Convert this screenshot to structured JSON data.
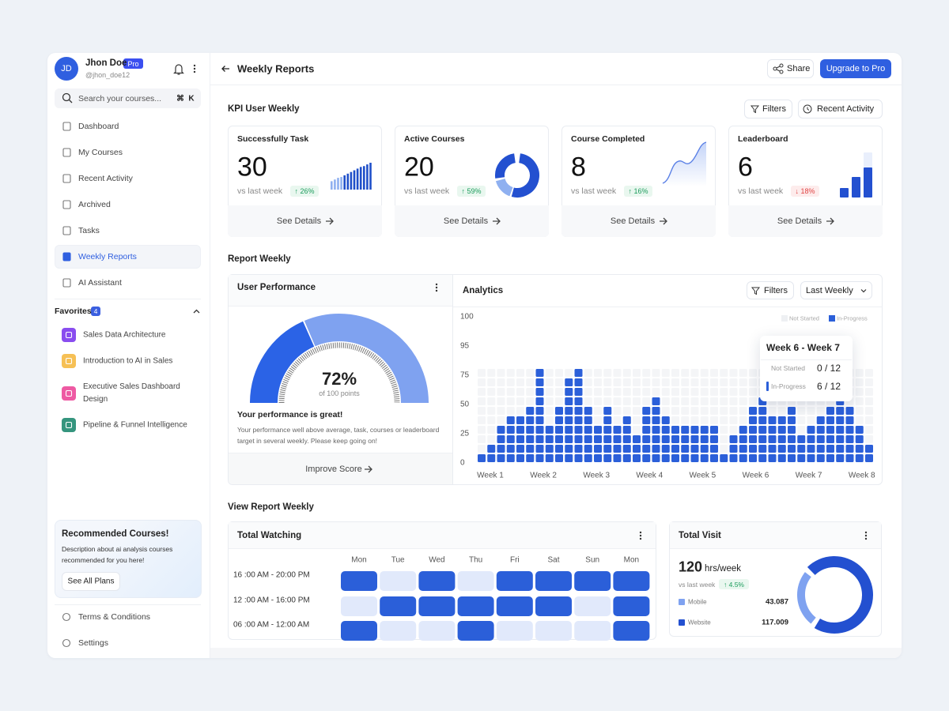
{
  "sidebar": {
    "user": {
      "initials": "JD",
      "name": "Jhon Doe",
      "badge": "Pro",
      "handle": "@jhon_doe12"
    },
    "search": {
      "placeholder": "Search your courses...",
      "shortcut": [
        "⌘",
        "K"
      ]
    },
    "nav": [
      "Dashboard",
      "My Courses",
      "Recent Activity",
      "Archived",
      "Tasks",
      "Weekly Reports",
      "AI Assistant"
    ],
    "active": 5,
    "favorites": {
      "title": "Favorites",
      "count": 4,
      "items": [
        {
          "label": "Sales Data Architecture",
          "color": "#7c3aed"
        },
        {
          "label": "Introduction to AI in Sales",
          "color": "#f5b942"
        },
        {
          "label": "Executive Sales Dashboard Design",
          "color": "#ec4899"
        },
        {
          "label": "Pipeline & Funnel Intelligence",
          "color": "#1f8a70"
        }
      ]
    },
    "recommended": {
      "title": "Recommended Courses!",
      "description": "Description about ai analysis courses recommended for you here!",
      "button": "See All Plans"
    },
    "footer": [
      "Terms & Conditions",
      "Settings"
    ]
  },
  "header": {
    "title": "Weekly Reports",
    "share": "Share",
    "upgrade": "Upgrade to Pro"
  },
  "kpi": {
    "title": "KPI User Weekly",
    "filters": "Filters",
    "recent": "Recent Activity",
    "cards": [
      {
        "title": "Successfully Task",
        "value": 30,
        "compare": "vs last week",
        "change": "↑ 26%",
        "trend": "up",
        "link": "See Details",
        "bars": [
          10,
          12,
          14,
          15,
          17,
          19,
          21,
          23,
          25,
          27,
          28,
          30,
          32
        ]
      },
      {
        "title": "Active Courses",
        "value": 20,
        "compare": "vs last week",
        "change": "↑ 59%",
        "trend": "up",
        "link": "See Details"
      },
      {
        "title": "Course Completed",
        "value": 8,
        "compare": "vs last week",
        "change": "↑ 16%",
        "trend": "up",
        "link": "See Details"
      },
      {
        "title": "Leaderboard",
        "value": 6,
        "compare": "vs last week",
        "change": "↓ 18%",
        "trend": "down",
        "link": "See Details",
        "bars": [
          12,
          26,
          38
        ]
      }
    ]
  },
  "report": {
    "title": "Report Weekly",
    "performance": {
      "title": "User Performance",
      "score": "72%",
      "sub": "of 100 points",
      "headline": "Your performance is great!",
      "description": "Your performance well above average, task, courses or leaderboard target in several weekly. Please keep going on!",
      "link": "Improve Score"
    },
    "analytics": {
      "title": "Analytics",
      "filters": "Filters",
      "period": "Last Weekly",
      "y_labels": [
        100,
        95,
        75,
        50,
        25,
        0
      ],
      "legend": [
        "Not Started",
        "In-Progress"
      ],
      "weeks": [
        "Week 1",
        "Week 2",
        "Week 3",
        "Week 4",
        "Week 5",
        "Week 6",
        "Week 7",
        "Week 8"
      ],
      "columns": [
        1,
        2,
        4,
        5,
        5,
        6,
        10,
        4,
        6,
        9,
        10,
        6,
        4,
        6,
        4,
        5,
        3,
        6,
        7,
        5,
        4,
        4,
        4,
        4,
        4,
        1,
        3,
        4,
        6,
        7,
        5,
        5,
        6,
        3,
        4,
        5,
        6,
        7,
        6,
        4,
        2
      ],
      "tooltip": {
        "title": "Week 6 - Week 7",
        "rows": [
          {
            "label": "Not Started",
            "value": "0 / 12"
          },
          {
            "label": "In-Progress",
            "value": "6 / 12"
          }
        ]
      }
    }
  },
  "view": {
    "title": "View Report Weekly",
    "watching": {
      "title": "Total Watching",
      "days": [
        "Mon",
        "Tue",
        "Wed",
        "Thu",
        "Fri",
        "Sat",
        "Sun",
        "Mon"
      ],
      "slots": [
        "16 :00 AM - 20:00 PM",
        "12 :00 AM - 16:00 PM",
        "06 :00 AM - 12:00 AM"
      ],
      "cells": [
        [
          1,
          0,
          1,
          0,
          1,
          1,
          1,
          1
        ],
        [
          0,
          1,
          1,
          1,
          1,
          1,
          0,
          1
        ],
        [
          1,
          0,
          0,
          1,
          0,
          0,
          0,
          1
        ]
      ]
    },
    "visit": {
      "title": "Total Visit",
      "value": 120,
      "unit": "hrs/week",
      "compare": "vs last week",
      "change": "↑ 4.5%",
      "legend": [
        {
          "name": "Mobile",
          "value": 43.087,
          "color": "#7fa2f0"
        },
        {
          "name": "Website",
          "value": 117.009,
          "color": "#2350d0"
        }
      ]
    }
  }
}
